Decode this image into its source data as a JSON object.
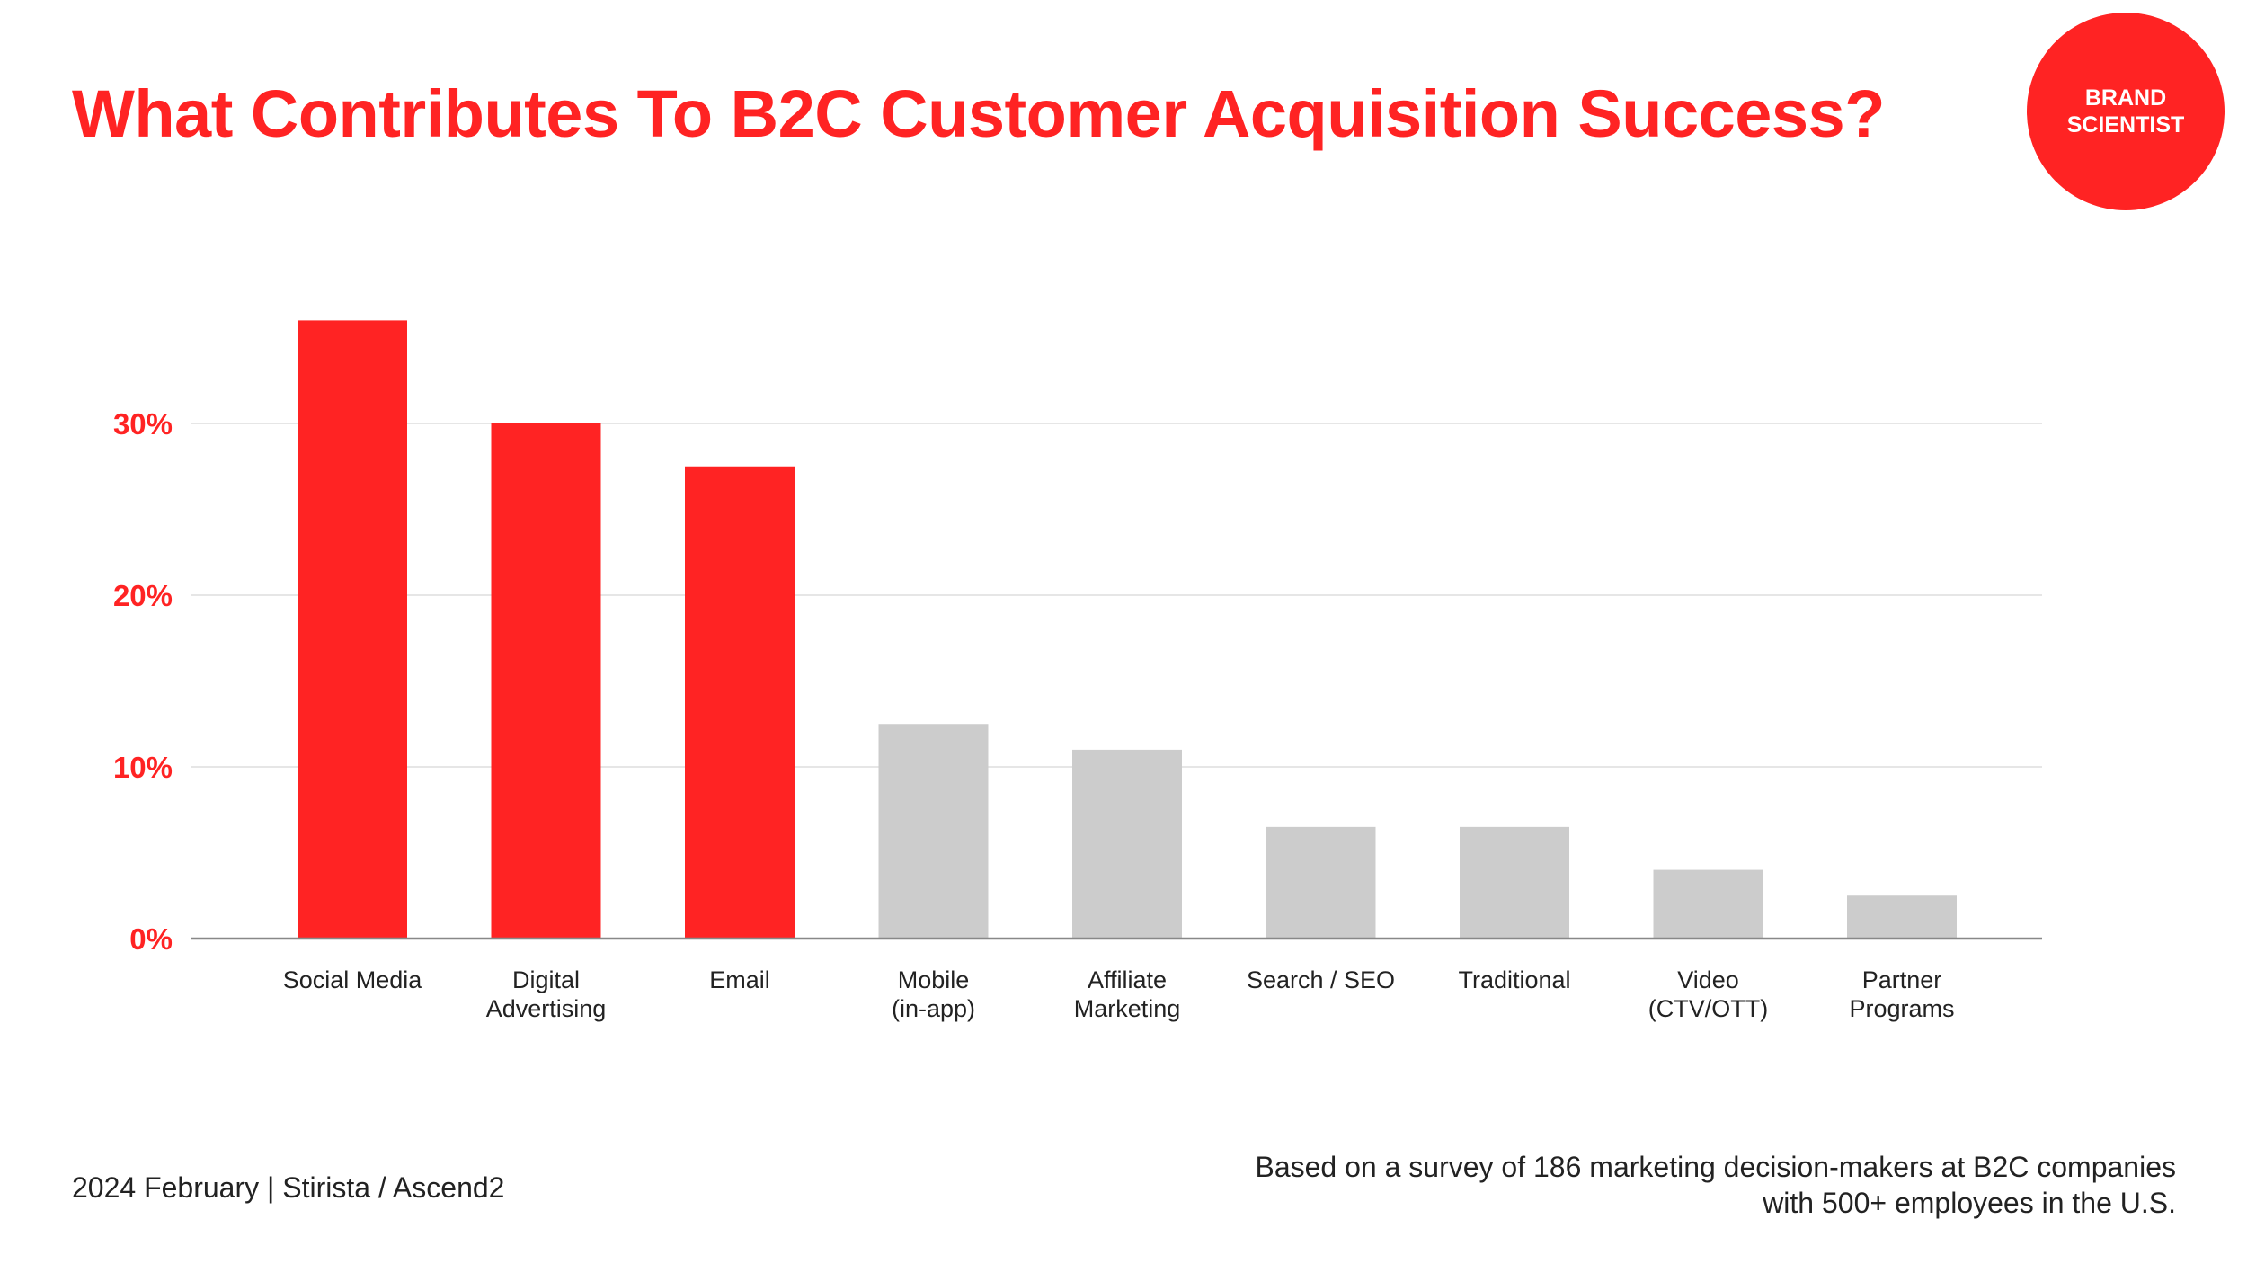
{
  "title": "What Contributes To B2C Customer Acquisition Success?",
  "logo": {
    "line1": "BRAND",
    "line2": "SCIENTIST"
  },
  "colors": {
    "highlight": "#ff2323",
    "muted": "#cccccc",
    "grid": "#dddddd",
    "axis": "#888888"
  },
  "chart_data": {
    "type": "bar",
    "categories": [
      [
        "Social Media"
      ],
      [
        "Digital",
        "Advertising"
      ],
      [
        "Email"
      ],
      [
        "Mobile",
        "(in-app)"
      ],
      [
        "Affiliate",
        "Marketing"
      ],
      [
        "Search / SEO"
      ],
      [
        "Traditional"
      ],
      [
        "Video",
        "(CTV/OTT)"
      ],
      [
        "Partner",
        "Programs"
      ]
    ],
    "values": [
      36,
      30,
      27.5,
      12.5,
      11,
      6.5,
      6.5,
      4,
      2.5
    ],
    "highlighted": [
      true,
      true,
      true,
      false,
      false,
      false,
      false,
      false,
      false
    ],
    "yticks": [
      0,
      10,
      20,
      30
    ],
    "ytick_labels": [
      "0%",
      "10%",
      "20%",
      "30%"
    ],
    "ylim": [
      0,
      40
    ],
    "grid": true
  },
  "footer": {
    "left": "2024 February  |  Stirista / Ascend2",
    "right_line1": "Based on a survey of 186 marketing decision-makers at B2C companies",
    "right_line2": "with 500+ employees in the U.S."
  }
}
